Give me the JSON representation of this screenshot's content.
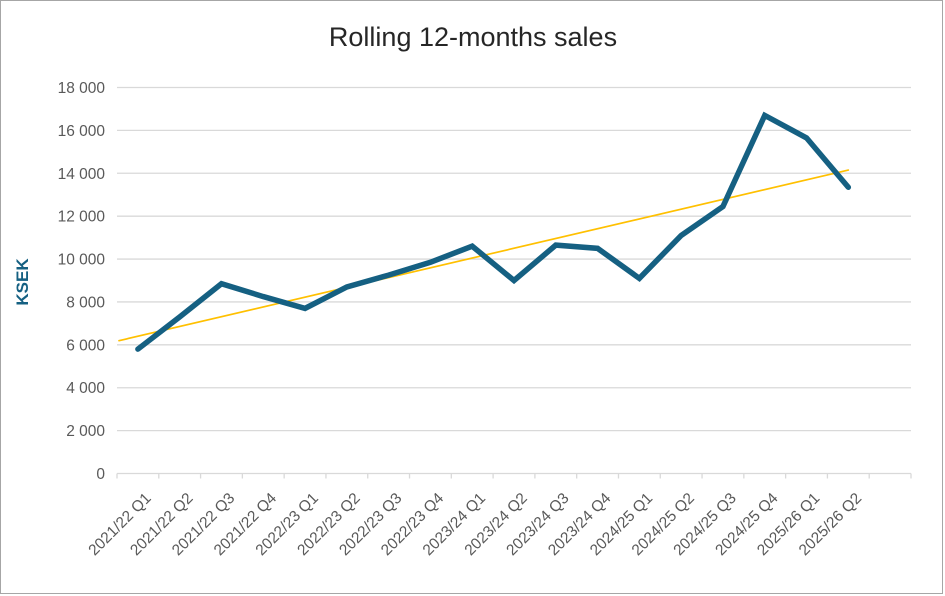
{
  "window": {
    "background": "#ffffff",
    "border_color": "#a6a6a6"
  },
  "chart_data": {
    "type": "line",
    "title": "Rolling 12-months sales",
    "ylabel": "KSEK",
    "xlabel": "",
    "categories": [
      "2021/22 Q1",
      "2021/22 Q2",
      "2021/22 Q3",
      "2021/22 Q4",
      "2022/23 Q1",
      "2022/23 Q2",
      "2022/23 Q3",
      "2022/23 Q4",
      "2023/24 Q1",
      "2023/24 Q2",
      "2023/24 Q3",
      "2023/24 Q4",
      "2024/25 Q1",
      "2024/25 Q2",
      "2024/25 Q3",
      "2024/25 Q4",
      "2025/26 Q1",
      "2025/26 Q2"
    ],
    "series": [
      {
        "name": "Rolling 12-months sales",
        "color": "#156082",
        "values": [
          5800,
          7300,
          8850,
          8250,
          7700,
          8700,
          9250,
          9850,
          10600,
          9000,
          10650,
          10500,
          9100,
          11100,
          12450,
          16700,
          15650,
          13350
        ]
      }
    ],
    "trendline": {
      "type": "linear",
      "color": "#FFC000",
      "start_value": 6400,
      "end_value": 14150
    },
    "ylim": [
      0,
      18000
    ],
    "ytick_step": 2000,
    "ytick_labels": [
      "0",
      "2 000",
      "4 000",
      "6 000",
      "8 000",
      "10 000",
      "12 000",
      "14 000",
      "16 000",
      "18 000"
    ],
    "grid": true,
    "legend": "none",
    "colors": {
      "gridline": "#D9D9D9",
      "axis": "#D9D9D9",
      "tick_label": "#595959",
      "title": "#262626"
    }
  }
}
